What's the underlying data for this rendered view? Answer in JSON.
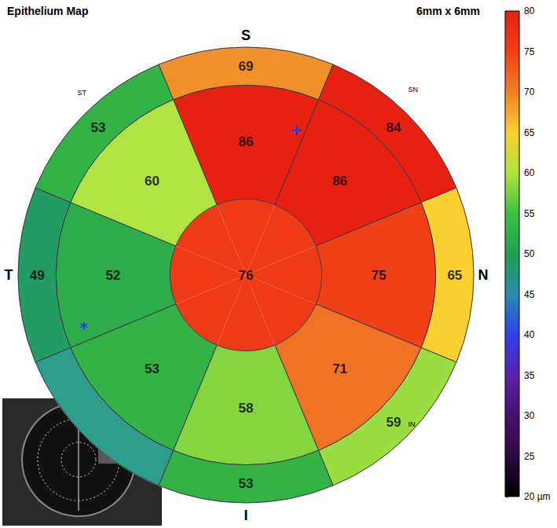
{
  "chart_data": {
    "type": "polar_sector_map",
    "title": "Epithelium Map",
    "subtitle": "6mm x 6mm",
    "direction_labels": [
      "S",
      "SN",
      "N",
      "IN",
      "I",
      null,
      "T",
      "ST"
    ],
    "center": 76,
    "paracentral": [
      86,
      86,
      75,
      71,
      58,
      53,
      52,
      60
    ],
    "outer": [
      69,
      84,
      65,
      59,
      53,
      null,
      49,
      53
    ],
    "annotations": [
      "+",
      "*"
    ],
    "colorbar": {
      "range": [
        20,
        80
      ],
      "ticks": [
        {
          "value": 20,
          "label": "20 µm"
        },
        25,
        30,
        35,
        40,
        45,
        50,
        55,
        60,
        65,
        70,
        75,
        80
      ]
    }
  }
}
